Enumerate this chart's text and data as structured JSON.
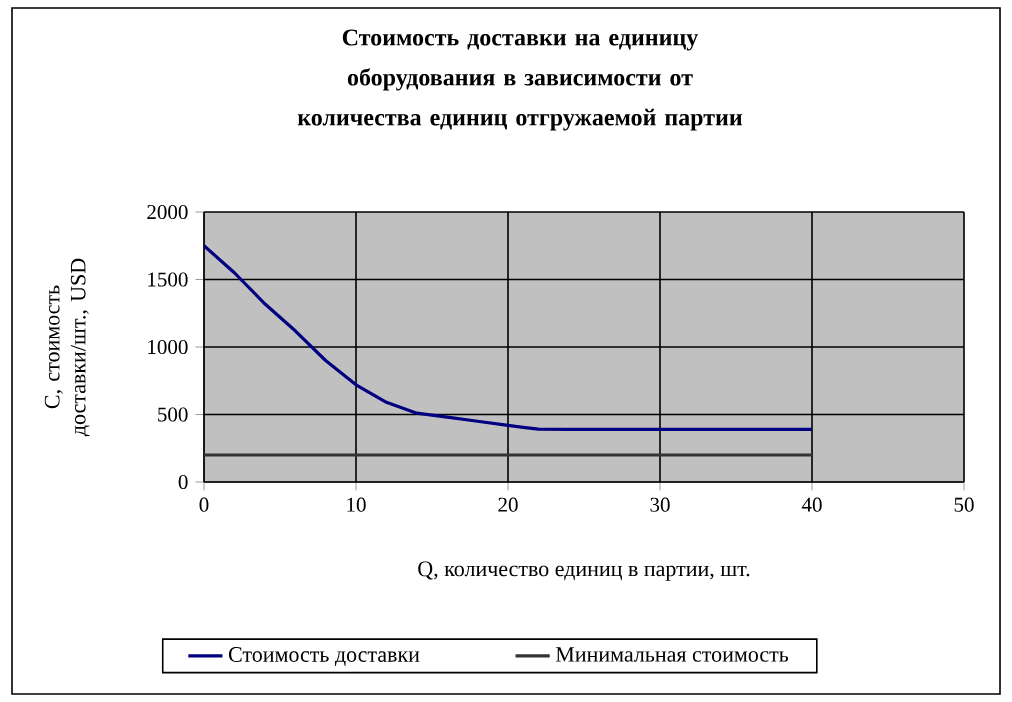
{
  "chart_data": {
    "type": "line",
    "title": "Стоимость доставки на единицу оборудования в зависимости от количества единиц отгружаемой партии",
    "xlabel": "Q, количество единиц в партии, шт.",
    "ylabel": "C, стоимость доставки/шт., USD",
    "series": [
      {
        "name": "Стоимость доставки",
        "color": "#000080",
        "x": [
          0,
          2,
          4,
          6,
          8,
          10,
          12,
          14,
          16,
          18,
          20,
          21,
          22,
          24,
          30,
          40
        ],
        "values": [
          1750,
          1550,
          1320,
          1120,
          900,
          720,
          590,
          510,
          480,
          450,
          420,
          405,
          392,
          390,
          390,
          390
        ]
      },
      {
        "name": "Минимальная стоимость",
        "color": "#333333",
        "x": [
          0,
          40
        ],
        "values": [
          200,
          200
        ]
      }
    ],
    "xlim": [
      0,
      50
    ],
    "xticks": [
      0,
      10,
      20,
      30,
      40,
      50
    ],
    "ylim": [
      0,
      2000
    ],
    "yticks": [
      0,
      500,
      1000,
      1500,
      2000
    ],
    "grid": true,
    "legend": "bottom",
    "marker": "none",
    "line_style": "solid"
  }
}
